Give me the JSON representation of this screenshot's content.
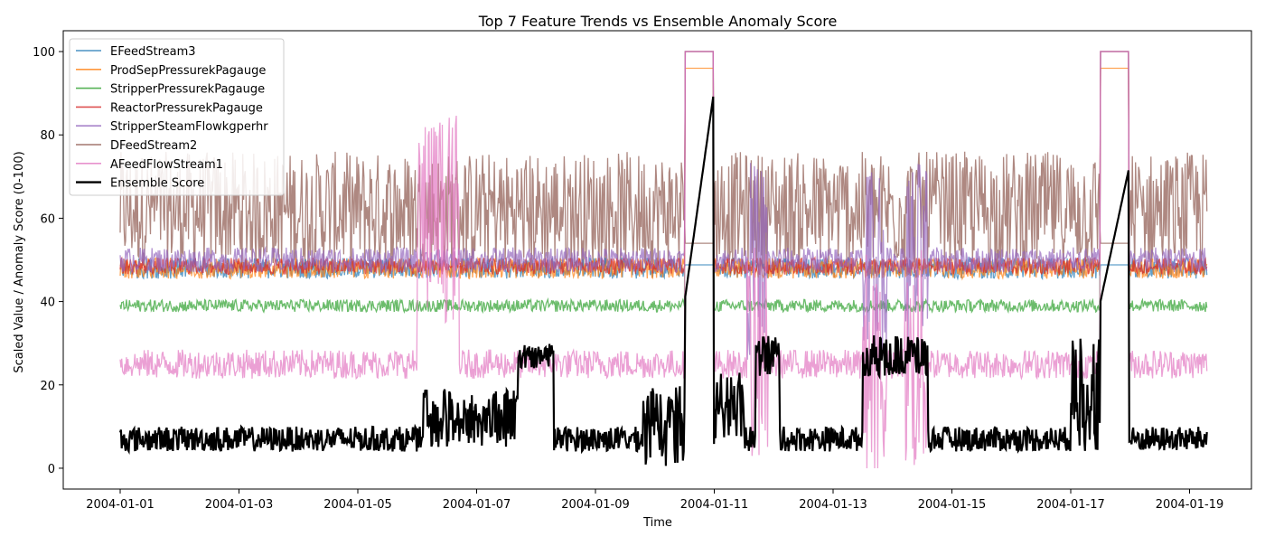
{
  "chart_data": {
    "type": "line",
    "title": "Top 7 Feature Trends vs Ensemble Anomaly Score",
    "xlabel": "Time",
    "ylabel": "Scaled Value / Anomaly Score (0-100)",
    "xlim": [
      "2003-12-31T01:00",
      "2004-01-20T01:00"
    ],
    "ylim": [
      -5,
      105
    ],
    "x_ticks": [
      "2004-01-01",
      "2004-01-03",
      "2004-01-05",
      "2004-01-07",
      "2004-01-09",
      "2004-01-11",
      "2004-01-13",
      "2004-01-15",
      "2004-01-17",
      "2004-01-19"
    ],
    "y_ticks": [
      0,
      20,
      40,
      60,
      80,
      100
    ],
    "grid": false,
    "legend": "upper-left",
    "series": [
      {
        "name": "EFeedStream3",
        "color": "#1f77b4",
        "base": 48,
        "noise": 2.5,
        "plateau": 48.8
      },
      {
        "name": "ProdSepPressurekPagauge",
        "color": "#ff7f0e",
        "base": 48,
        "noise": 2.5,
        "plateau": 96
      },
      {
        "name": "StripperPressurekPagauge",
        "color": "#2ca02c",
        "base": 39,
        "noise": 1.5,
        "plateau": 100
      },
      {
        "name": "ReactorPressurekPagauge",
        "color": "#d62728",
        "base": 48.5,
        "noise": 2,
        "plateau": 100
      },
      {
        "name": "StripperSteamFlowkgperhr",
        "color": "#9467bd",
        "base": 50,
        "noise": 3,
        "plateau": 100
      },
      {
        "name": "DFeedStream2",
        "color": "#8c564b",
        "base": 62,
        "noise": 8,
        "plateau": 54
      },
      {
        "name": "AFeedFlowStream1",
        "color": "#e377c2",
        "base": 25,
        "noise": 3.5,
        "plateau": 100
      },
      {
        "name": "Ensemble Score",
        "color": "#000000",
        "base": 7,
        "noise": 3,
        "plateau": 87
      }
    ]
  }
}
